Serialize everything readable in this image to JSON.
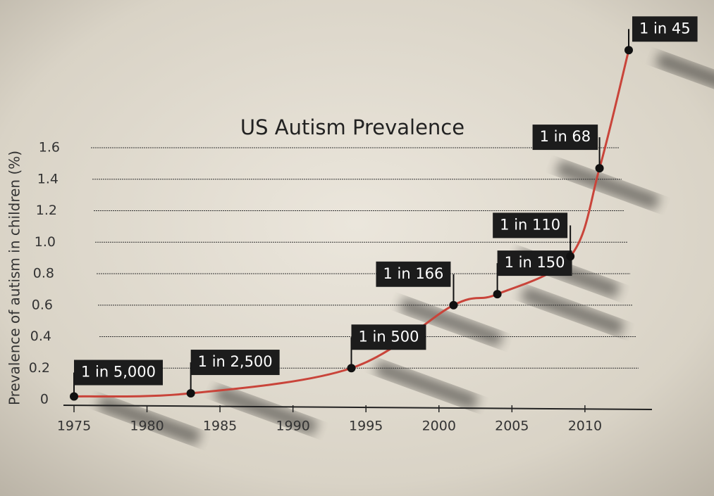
{
  "chart_data": {
    "type": "line",
    "title": "US Autism Prevalence",
    "y_label": "Prevalence of autism in children (%)",
    "x": [
      1975,
      1983,
      1994,
      2001,
      2004,
      2009,
      2011,
      2013
    ],
    "series": [
      {
        "name": "Prevalence",
        "color": "#c9443a",
        "values": [
          0.02,
          0.04,
          0.2,
          0.6,
          0.67,
          0.91,
          1.47,
          2.22
        ],
        "value_labels": [
          "1 in 5,000",
          "1 in 2,500",
          "1 in 500",
          "1 in 166",
          "1 in 150",
          "1 in 110",
          "1 in 68",
          "1 in 45"
        ]
      }
    ],
    "xlim": [
      1975,
      2013
    ],
    "xticks": [
      1975,
      1980,
      1985,
      1990,
      1995,
      2000,
      2005,
      2010
    ],
    "ylim": [
      0,
      1.6
    ],
    "yticks": [
      0,
      0.2,
      0.4,
      0.6,
      0.8,
      {
        "value": 1,
        "label": "1.0"
      },
      1.2,
      1.4,
      1.6
    ],
    "grid": true
  }
}
